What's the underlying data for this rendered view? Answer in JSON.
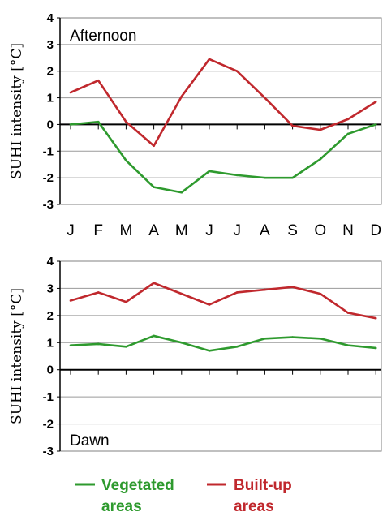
{
  "chart_data": [
    {
      "type": "line",
      "title": "Afternoon",
      "ylabel": "SUHI intensity  [°C]",
      "ylim": [
        -3,
        4
      ],
      "yticks": [
        "4",
        "3",
        "2",
        "1",
        "0",
        "-1",
        "-2",
        "-3"
      ],
      "categories": [
        "J",
        "F",
        "M",
        "A",
        "M",
        "J",
        "J",
        "A",
        "S",
        "O",
        "N",
        "D"
      ],
      "grid": true,
      "series": [
        {
          "name": "Vegetated areas",
          "color": "#2e9a2e",
          "values": [
            0.0,
            0.1,
            -1.35,
            -2.35,
            -2.55,
            -1.75,
            -1.9,
            -2.0,
            -2.0,
            -1.3,
            -0.35,
            0.0
          ]
        },
        {
          "name": "Built-up areas",
          "color": "#c0282d",
          "values": [
            1.2,
            1.65,
            0.1,
            -0.8,
            1.05,
            2.45,
            2.0,
            1.0,
            -0.05,
            -0.2,
            0.2,
            0.85
          ]
        }
      ]
    },
    {
      "type": "line",
      "title": "Dawn",
      "ylabel": "SUHI intensity  [°C]",
      "ylim": [
        -3,
        4
      ],
      "yticks": [
        "4",
        "3",
        "2",
        "1",
        "0",
        "-1",
        "-2",
        "-3"
      ],
      "categories": [
        "J",
        "F",
        "M",
        "A",
        "M",
        "J",
        "J",
        "A",
        "S",
        "O",
        "N",
        "D"
      ],
      "grid": true,
      "series": [
        {
          "name": "Vegetated areas",
          "color": "#2e9a2e",
          "values": [
            0.9,
            0.95,
            0.85,
            1.25,
            1.0,
            0.7,
            0.85,
            1.15,
            1.2,
            1.15,
            0.9,
            0.8
          ]
        },
        {
          "name": "Built-up areas",
          "color": "#c0282d",
          "values": [
            2.55,
            2.85,
            2.5,
            3.2,
            2.8,
            2.4,
            2.85,
            2.95,
            3.05,
            2.8,
            2.1,
            1.9
          ]
        }
      ]
    }
  ],
  "legend": [
    {
      "line1": "Vegetated",
      "line2": "areas",
      "color": "#2e9a2e"
    },
    {
      "line1": "Built-up",
      "line2": "areas",
      "color": "#c0282d"
    }
  ]
}
